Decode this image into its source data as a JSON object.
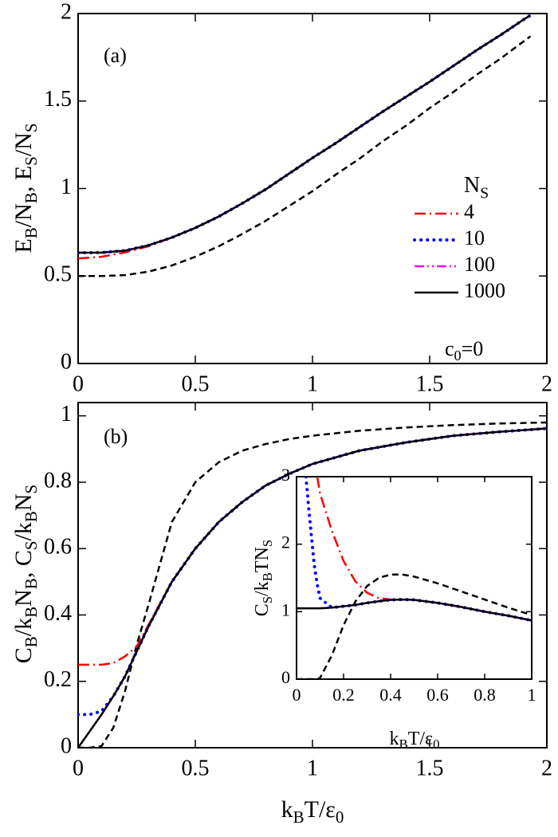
{
  "chart_data": [
    {
      "type": "line",
      "ylabel": [
        "E",
        "B",
        "/N",
        "B",
        ", E",
        "S",
        "/N",
        "S"
      ],
      "annotations": [
        "(a)",
        [
          "c",
          "0",
          "=0"
        ]
      ],
      "legend_title": [
        "N",
        "S"
      ],
      "legend": "right",
      "xlim": [
        0,
        2
      ],
      "ylim": [
        0,
        2
      ],
      "xticks": [
        0,
        0.5,
        1,
        1.5,
        2
      ],
      "yticks": [
        0,
        0.5,
        1,
        1.5,
        2
      ],
      "x": [
        0,
        0.1,
        0.2,
        0.3,
        0.4,
        0.5,
        0.6,
        0.7,
        0.8,
        0.9,
        1,
        1.1,
        1.2,
        1.3,
        1.4,
        1.5,
        1.6,
        1.7,
        1.8,
        1.9,
        1.93
      ],
      "series": [
        {
          "color": "#000000",
          "style": "dashed",
          "values": [
            0.5,
            0.5,
            0.505,
            0.525,
            0.56,
            0.61,
            0.67,
            0.74,
            0.815,
            0.9,
            0.985,
            1.08,
            1.17,
            1.27,
            1.36,
            1.46,
            1.55,
            1.65,
            1.74,
            1.84,
            1.87
          ]
        },
        {
          "name": "4",
          "color": "#ff0000",
          "style": "dashdot",
          "values": [
            0.6,
            0.61,
            0.635,
            0.67,
            0.72,
            0.775,
            0.84,
            0.915,
            0.995,
            1.085,
            1.175,
            1.26,
            1.35,
            1.44,
            1.525,
            1.61,
            1.7,
            1.79,
            1.875,
            1.965,
            1.99
          ]
        },
        {
          "name": "10",
          "color": "#0000ff",
          "style": "dotted",
          "values": [
            0.633,
            0.634,
            0.645,
            0.675,
            0.72,
            0.775,
            0.84,
            0.915,
            0.995,
            1.085,
            1.175,
            1.26,
            1.35,
            1.44,
            1.525,
            1.61,
            1.7,
            1.79,
            1.875,
            1.965,
            1.99
          ]
        },
        {
          "name": "100",
          "color": "#ff00ff",
          "style": "dashdotdot",
          "values": [
            0.633,
            0.634,
            0.645,
            0.675,
            0.72,
            0.775,
            0.84,
            0.915,
            0.995,
            1.085,
            1.175,
            1.26,
            1.35,
            1.44,
            1.525,
            1.61,
            1.7,
            1.79,
            1.875,
            1.965,
            1.99
          ]
        },
        {
          "name": "1000",
          "color": "#000000",
          "style": "solid",
          "values": [
            0.633,
            0.634,
            0.645,
            0.675,
            0.72,
            0.775,
            0.84,
            0.915,
            0.995,
            1.085,
            1.175,
            1.26,
            1.35,
            1.44,
            1.525,
            1.61,
            1.7,
            1.79,
            1.875,
            1.965,
            1.99
          ]
        }
      ]
    },
    {
      "type": "line",
      "ylabel": [
        "C",
        "B",
        "/k",
        "B",
        "N",
        "B",
        ", C",
        "S",
        "/k",
        "B",
        "N",
        "S"
      ],
      "xlabel": [
        "k",
        "B",
        "T/ε",
        "0"
      ],
      "annotations": [
        "(b)"
      ],
      "xlim": [
        0,
        2
      ],
      "ylim": [
        0,
        1.04
      ],
      "xticks": [
        0,
        0.5,
        1,
        1.5,
        2
      ],
      "yticks": [
        0,
        0.2,
        0.4,
        0.6,
        0.8,
        1
      ],
      "x": [
        0,
        0.05,
        0.1,
        0.15,
        0.2,
        0.25,
        0.3,
        0.4,
        0.5,
        0.6,
        0.7,
        0.8,
        0.9,
        1,
        1.2,
        1.4,
        1.6,
        1.8,
        2
      ],
      "series": [
        {
          "color": "#000000",
          "style": "dashed",
          "values": [
            0,
            0,
            0.005,
            0.06,
            0.17,
            0.31,
            0.43,
            0.68,
            0.8,
            0.86,
            0.895,
            0.915,
            0.93,
            0.94,
            0.955,
            0.965,
            0.972,
            0.977,
            0.98
          ]
        },
        {
          "name": "4",
          "color": "#ff0000",
          "style": "dashdot",
          "values": [
            0.25,
            0.25,
            0.25,
            0.255,
            0.275,
            0.305,
            0.37,
            0.5,
            0.6,
            0.68,
            0.74,
            0.79,
            0.825,
            0.855,
            0.895,
            0.92,
            0.94,
            0.952,
            0.962
          ]
        },
        {
          "name": "10",
          "color": "#0000ff",
          "style": "dotted",
          "values": [
            0.1,
            0.1,
            0.11,
            0.155,
            0.215,
            0.29,
            0.365,
            0.5,
            0.6,
            0.68,
            0.74,
            0.79,
            0.825,
            0.855,
            0.895,
            0.92,
            0.94,
            0.952,
            0.962
          ]
        },
        {
          "name": "100",
          "color": "#ff00ff",
          "style": "dashdotdot",
          "values": [
            0,
            0.05,
            0.1,
            0.155,
            0.215,
            0.29,
            0.365,
            0.5,
            0.6,
            0.68,
            0.74,
            0.79,
            0.825,
            0.855,
            0.895,
            0.92,
            0.94,
            0.952,
            0.962
          ]
        },
        {
          "name": "1000",
          "color": "#000000",
          "style": "solid",
          "values": [
            0,
            0.05,
            0.1,
            0.155,
            0.215,
            0.29,
            0.365,
            0.5,
            0.6,
            0.68,
            0.74,
            0.79,
            0.825,
            0.855,
            0.895,
            0.92,
            0.94,
            0.952,
            0.962
          ]
        }
      ]
    },
    {
      "type": "line",
      "ylabel": [
        "C",
        "S",
        "/k",
        "B",
        "TN",
        "S"
      ],
      "xlabel": [
        "k",
        "B",
        "T/ε",
        "0"
      ],
      "xlim": [
        0,
        1
      ],
      "ylim": [
        0,
        3
      ],
      "xticks": [
        0,
        0.2,
        0.4,
        0.6,
        0.8,
        1
      ],
      "yticks": [
        0,
        1,
        2,
        3
      ],
      "x": [
        0,
        0.04,
        0.05,
        0.075,
        0.088,
        0.1,
        0.15,
        0.2,
        0.25,
        0.3,
        0.35,
        0.4,
        0.45,
        0.5,
        0.6,
        0.7,
        0.8,
        0.9,
        1
      ],
      "series": [
        {
          "color": "#000000",
          "style": "dashed",
          "values": [
            0,
            0,
            0,
            0,
            0,
            0.02,
            0.35,
            0.8,
            1.15,
            1.38,
            1.5,
            1.55,
            1.55,
            1.52,
            1.42,
            1.3,
            1.18,
            1.06,
            0.95
          ]
        },
        {
          "color": "#ff0000",
          "style": "dashdot",
          "values": [
            null,
            null,
            null,
            null,
            3,
            2.75,
            2.2,
            1.75,
            1.45,
            1.28,
            1.2,
            1.18,
            1.18,
            1.175,
            1.13,
            1.07,
            1.0,
            0.94,
            0.87
          ]
        },
        {
          "color": "#0000ff",
          "style": "dotted",
          "values": [
            null,
            3,
            2.6,
            1.7,
            1.4,
            1.2,
            1.06,
            1.08,
            1.1,
            1.13,
            1.155,
            1.175,
            1.18,
            1.175,
            1.13,
            1.07,
            1.0,
            0.94,
            0.87
          ]
        },
        {
          "color": "#ff00ff",
          "style": "dashdotdot",
          "values": [
            1.05,
            1.05,
            1.05,
            1.05,
            1.05,
            1.05,
            1.06,
            1.08,
            1.1,
            1.13,
            1.155,
            1.175,
            1.18,
            1.175,
            1.13,
            1.07,
            1.0,
            0.94,
            0.87
          ]
        },
        {
          "color": "#000000",
          "style": "solid",
          "values": [
            1.05,
            1.05,
            1.05,
            1.05,
            1.05,
            1.05,
            1.06,
            1.08,
            1.1,
            1.13,
            1.155,
            1.175,
            1.18,
            1.175,
            1.13,
            1.07,
            1.0,
            0.94,
            0.87
          ]
        }
      ]
    }
  ]
}
